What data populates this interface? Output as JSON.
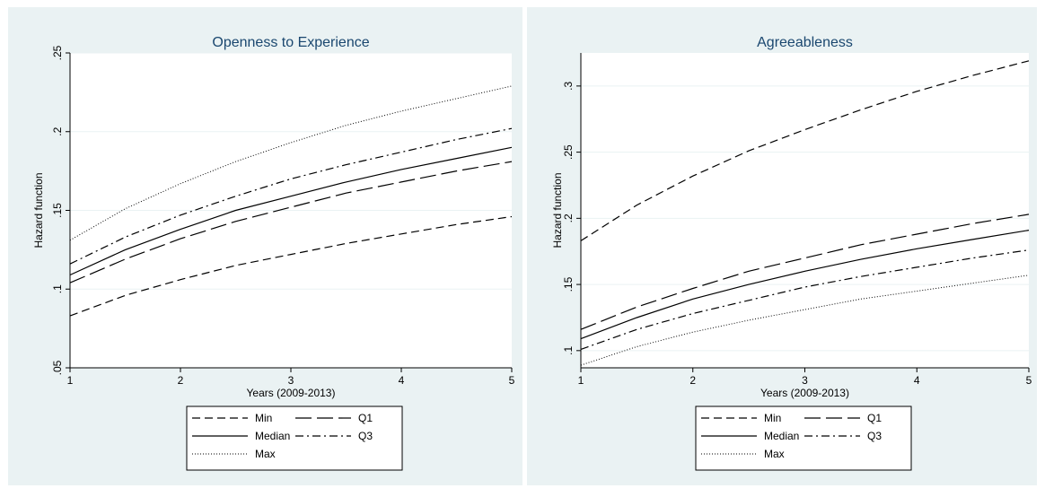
{
  "colors": {
    "outer": "#eaf2f3",
    "plot_bg": "#ffffff",
    "grid": "#eaf2f3",
    "line": "#000000",
    "title": "#1a476f"
  },
  "chart_data": [
    {
      "type": "line",
      "title": "Openness to Experience",
      "xlabel": "Years (2009-2013)",
      "ylabel": "Hazard function",
      "xlim": [
        1,
        5
      ],
      "ylim": [
        0.05,
        0.25
      ],
      "grid": true,
      "legend_position": "bottom",
      "x": [
        1,
        1.5,
        2,
        2.5,
        3,
        3.5,
        4,
        4.5,
        5
      ],
      "xticks": [
        {
          "v": 1,
          "label": "1"
        },
        {
          "v": 2,
          "label": "2"
        },
        {
          "v": 3,
          "label": "3"
        },
        {
          "v": 4,
          "label": "4"
        },
        {
          "v": 5,
          "label": "5"
        }
      ],
      "yticks": [
        {
          "v": 0.05,
          "label": ".05"
        },
        {
          "v": 0.1,
          "label": ".1"
        },
        {
          "v": 0.15,
          "label": ".15"
        },
        {
          "v": 0.2,
          "label": ".2"
        },
        {
          "v": 0.25,
          "label": ".25"
        }
      ],
      "series": [
        {
          "name": "Min",
          "style": "dash",
          "values": [
            0.083,
            0.096,
            0.106,
            0.115,
            0.122,
            0.129,
            0.135,
            0.141,
            0.146
          ]
        },
        {
          "name": "Q1",
          "style": "longdash",
          "values": [
            0.104,
            0.119,
            0.132,
            0.143,
            0.152,
            0.161,
            0.168,
            0.175,
            0.181
          ]
        },
        {
          "name": "Median",
          "style": "solid",
          "values": [
            0.109,
            0.125,
            0.138,
            0.15,
            0.159,
            0.168,
            0.176,
            0.183,
            0.19
          ]
        },
        {
          "name": "Q3",
          "style": "dashdot",
          "values": [
            0.116,
            0.133,
            0.147,
            0.159,
            0.17,
            0.179,
            0.187,
            0.195,
            0.202
          ]
        },
        {
          "name": "Max",
          "style": "dot",
          "values": [
            0.131,
            0.151,
            0.167,
            0.181,
            0.193,
            0.204,
            0.213,
            0.221,
            0.229
          ]
        }
      ]
    },
    {
      "type": "line",
      "title": "Agreeableness",
      "xlabel": "Years (2009-2013)",
      "ylabel": "Hazard function",
      "xlim": [
        1,
        5
      ],
      "ylim": [
        0.087,
        0.325
      ],
      "grid": true,
      "legend_position": "bottom",
      "x": [
        1,
        1.5,
        2,
        2.5,
        3,
        3.5,
        4,
        4.5,
        5
      ],
      "xticks": [
        {
          "v": 1,
          "label": "1"
        },
        {
          "v": 2,
          "label": "2"
        },
        {
          "v": 3,
          "label": "3"
        },
        {
          "v": 4,
          "label": "4"
        },
        {
          "v": 5,
          "label": "5"
        }
      ],
      "yticks": [
        {
          "v": 0.1,
          "label": ".1"
        },
        {
          "v": 0.15,
          "label": ".15"
        },
        {
          "v": 0.2,
          "label": ".2"
        },
        {
          "v": 0.25,
          "label": ".25"
        },
        {
          "v": 0.3,
          "label": ".3"
        }
      ],
      "series": [
        {
          "name": "Min",
          "style": "dash",
          "values": [
            0.183,
            0.21,
            0.232,
            0.251,
            0.267,
            0.282,
            0.296,
            0.308,
            0.319
          ]
        },
        {
          "name": "Q1",
          "style": "longdash",
          "values": [
            0.116,
            0.133,
            0.147,
            0.16,
            0.17,
            0.18,
            0.188,
            0.196,
            0.203
          ]
        },
        {
          "name": "Median",
          "style": "solid",
          "values": [
            0.109,
            0.125,
            0.139,
            0.15,
            0.16,
            0.169,
            0.177,
            0.184,
            0.191
          ]
        },
        {
          "name": "Q3",
          "style": "dashdot",
          "values": [
            0.101,
            0.116,
            0.128,
            0.138,
            0.148,
            0.156,
            0.163,
            0.17,
            0.176
          ]
        },
        {
          "name": "Max",
          "style": "dot",
          "values": [
            0.089,
            0.103,
            0.114,
            0.123,
            0.131,
            0.139,
            0.145,
            0.151,
            0.157
          ]
        }
      ]
    }
  ]
}
